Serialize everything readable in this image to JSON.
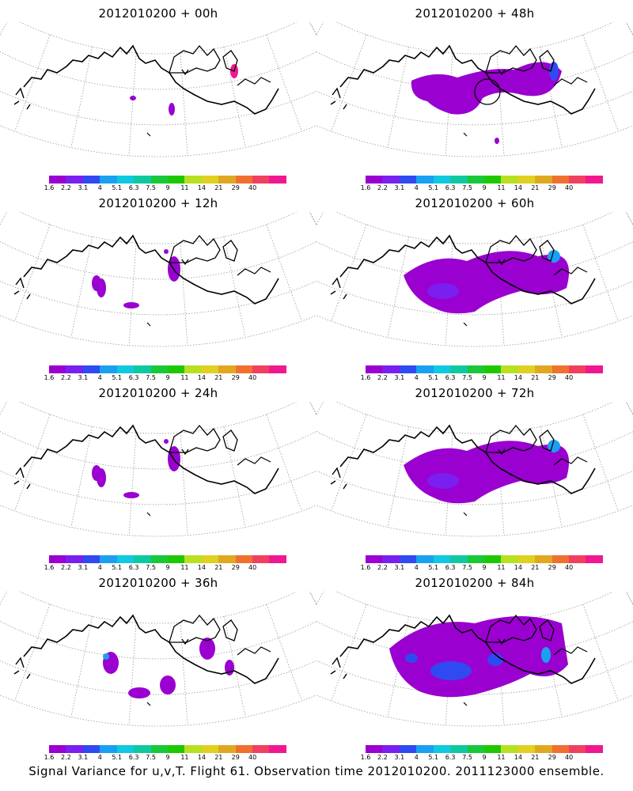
{
  "panels": [
    {
      "title": "2012010200 + 00h",
      "coverage": "minimal"
    },
    {
      "title": "2012010200 + 48h",
      "coverage": "moderate"
    },
    {
      "title": "2012010200 + 12h",
      "coverage": "small"
    },
    {
      "title": "2012010200 + 60h",
      "coverage": "large"
    },
    {
      "title": "2012010200 + 24h",
      "coverage": "small"
    },
    {
      "title": "2012010200 + 72h",
      "coverage": "large"
    },
    {
      "title": "2012010200 + 36h",
      "coverage": "medium"
    },
    {
      "title": "2012010200 + 84h",
      "coverage": "very-large"
    }
  ],
  "colorbar": {
    "tick_labels": [
      "1.6",
      "2.2",
      "3.1",
      "4",
      "5.1",
      "6.3",
      "7.5",
      "9",
      "11",
      "14",
      "21",
      "29",
      "40"
    ],
    "colors": [
      "#9a00d0",
      "#7a1ff0",
      "#2f4af0",
      "#1aa0f0",
      "#10c8e0",
      "#10c8a0",
      "#18c838",
      "#1ec800",
      "#b8e020",
      "#e0d020",
      "#e0a820",
      "#f07030",
      "#f04060",
      "#f01890"
    ]
  },
  "caption": "Signal Variance for u,v,T. Flight 61. Observation time 2012010200. 2011123000 ensemble."
}
